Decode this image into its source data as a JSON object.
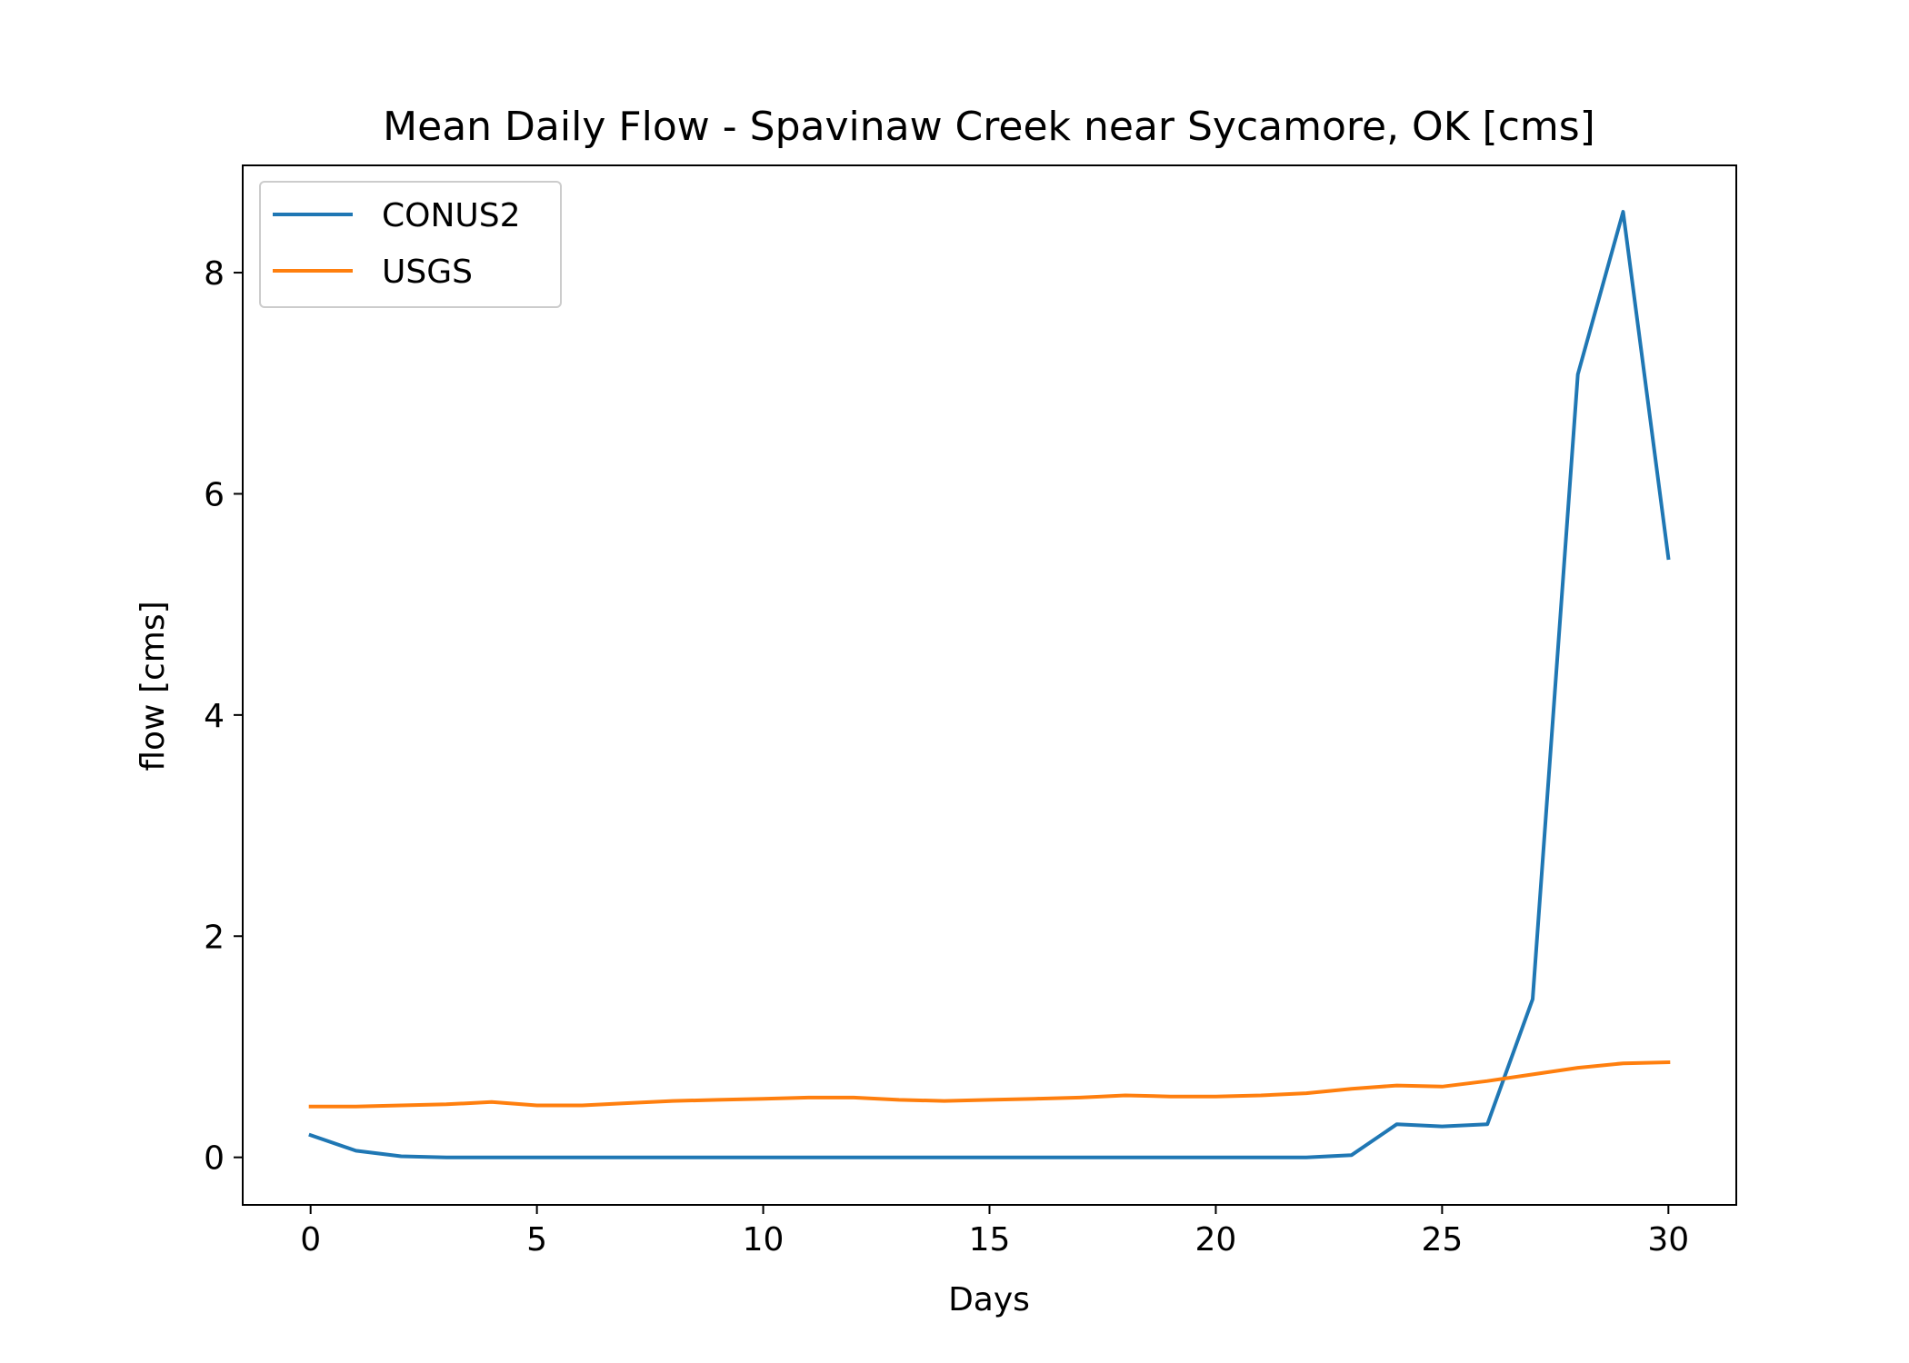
{
  "chart_data": {
    "type": "line",
    "title": "Mean Daily Flow - Spavinaw Creek near Sycamore, OK [cms]",
    "xlabel": "Days",
    "ylabel": "flow [cms]",
    "xlim": [
      -1.5,
      31.5
    ],
    "ylim": [
      -0.43,
      8.97
    ],
    "xticks": [
      0,
      5,
      10,
      15,
      20,
      25,
      30
    ],
    "yticks": [
      0,
      2,
      4,
      6,
      8
    ],
    "legend_position": "upper-left",
    "grid": false,
    "x": [
      0,
      1,
      2,
      3,
      4,
      5,
      6,
      7,
      8,
      9,
      10,
      11,
      12,
      13,
      14,
      15,
      16,
      17,
      18,
      19,
      20,
      21,
      22,
      23,
      24,
      25,
      26,
      27,
      28,
      29,
      30
    ],
    "series": [
      {
        "name": "CONUS2",
        "color": "#1f77b4",
        "values": [
          0.2,
          0.06,
          0.01,
          0.0,
          0.0,
          0.0,
          0.0,
          0.0,
          0.0,
          0.0,
          0.0,
          0.0,
          0.0,
          0.0,
          0.0,
          0.0,
          0.0,
          0.0,
          0.0,
          0.0,
          0.0,
          0.0,
          0.0,
          0.02,
          0.3,
          0.28,
          0.3,
          1.43,
          7.08,
          8.55,
          5.42
        ]
      },
      {
        "name": "USGS",
        "color": "#ff7f0e",
        "values": [
          0.46,
          0.46,
          0.47,
          0.48,
          0.5,
          0.47,
          0.47,
          0.49,
          0.51,
          0.52,
          0.53,
          0.54,
          0.54,
          0.52,
          0.51,
          0.52,
          0.53,
          0.54,
          0.56,
          0.55,
          0.55,
          0.56,
          0.58,
          0.62,
          0.65,
          0.64,
          0.69,
          0.75,
          0.81,
          0.85,
          0.86
        ]
      }
    ]
  }
}
